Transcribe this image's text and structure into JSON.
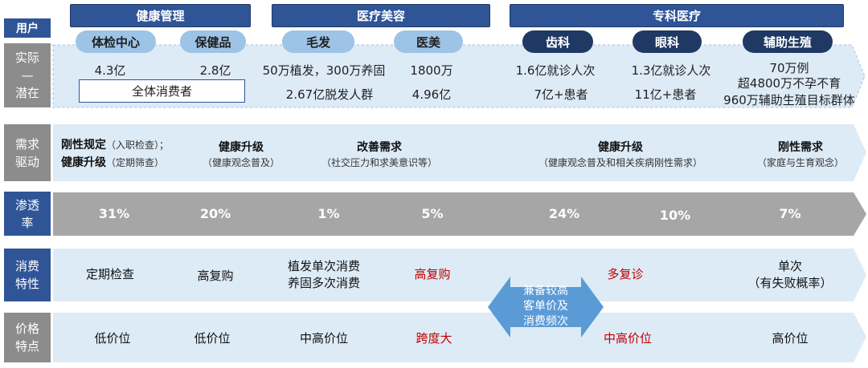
{
  "top_label": "用户",
  "groups": [
    {
      "title": "健康管理",
      "items": [
        "体检中心",
        "保健品"
      ]
    },
    {
      "title": "医疗美容",
      "items": [
        "毛发",
        "医美"
      ]
    },
    {
      "title": "专科医疗",
      "items": [
        "齿科",
        "眼科",
        "辅助生殖"
      ]
    }
  ],
  "rows": {
    "shiji": {
      "label": [
        "实际",
        "—",
        "潜在"
      ],
      "actual": [
        "4.3亿",
        "2.8亿",
        "50万植发，300万养固",
        "1800万",
        "1.6亿就诊人次",
        "1.3亿就诊人次",
        "70万例"
      ],
      "potential": [
        "全体消费者",
        "2.67亿脱发人群",
        "4.96亿",
        "7亿+患者",
        "11亿+患者",
        "超4800万不孕不育",
        "960万辅助生殖目标群体"
      ]
    },
    "demand": {
      "label": [
        "需求",
        "驱动"
      ],
      "items": [
        {
          "main": "刚性规定",
          "sub": "（入职检查）；"
        },
        {
          "main": "健康升级",
          "sub": "（定期筛查）"
        },
        {
          "main": "健康升级",
          "sub": "（健康观念普及）"
        },
        {
          "main": "改善需求",
          "sub": "（社交压力和求美意识等）"
        },
        {
          "main": "健康升级",
          "sub": "（健康观念普及和相关疾病刚性需求）"
        },
        {
          "main": "刚性需求",
          "sub": "（家庭与生育观念）"
        }
      ]
    },
    "penetration": {
      "label": [
        "渗透",
        "率"
      ],
      "values": [
        "31%",
        "20%",
        "1%",
        "5%",
        "24%",
        "10%",
        "7%"
      ]
    },
    "consumption": {
      "label": [
        "消费",
        "特性"
      ],
      "items": [
        "定期检查",
        "高复购",
        "植发单次消费",
        "养固多次消费",
        "高复购",
        "多复诊",
        "单次",
        "（有失败概率）"
      ],
      "middle": [
        "兼备较高",
        "客单价及",
        "消费频次"
      ]
    },
    "price": {
      "label": [
        "价格",
        "特点"
      ],
      "items": [
        "低价位",
        "低价位",
        "中高价位",
        "跨度大",
        "中高价位",
        "高价位"
      ]
    }
  },
  "colors": {
    "dark_blue": "#1f3864",
    "mid_blue": "#2f5597",
    "light_blue": "#9dc3e6",
    "band": "#ddebf7",
    "gray": "#8c8c8c",
    "red": "#c00000"
  }
}
